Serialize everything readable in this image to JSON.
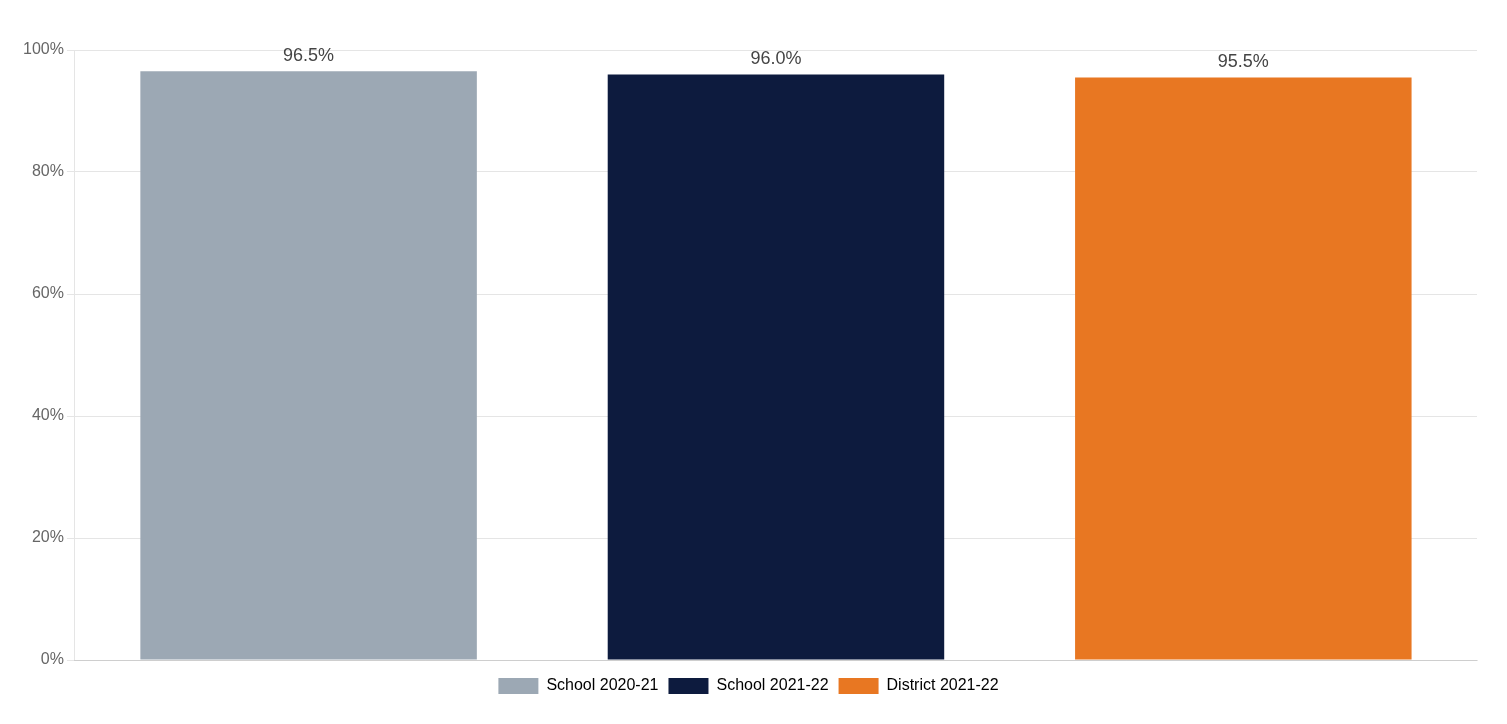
{
  "chart_data": {
    "type": "bar",
    "categories": [
      "School 2020-21",
      "School 2021-22",
      "District 2021-22"
    ],
    "values": [
      96.5,
      96.0,
      95.5
    ],
    "value_labels": [
      "96.5%",
      "96.0%",
      "95.5%"
    ],
    "colors": [
      "#9ca8b4",
      "#0d1b3e",
      "#e87722"
    ],
    "ylim": [
      0,
      100
    ],
    "yticks": [
      {
        "value": 0,
        "label": "0%"
      },
      {
        "value": 20,
        "label": "20%"
      },
      {
        "value": 40,
        "label": "40%"
      },
      {
        "value": 60,
        "label": "60%"
      },
      {
        "value": 80,
        "label": "80%"
      },
      {
        "value": 100,
        "label": "100%"
      }
    ],
    "grid": true,
    "legend": "bottom",
    "data_labels": true,
    "tick_labels": "y"
  }
}
